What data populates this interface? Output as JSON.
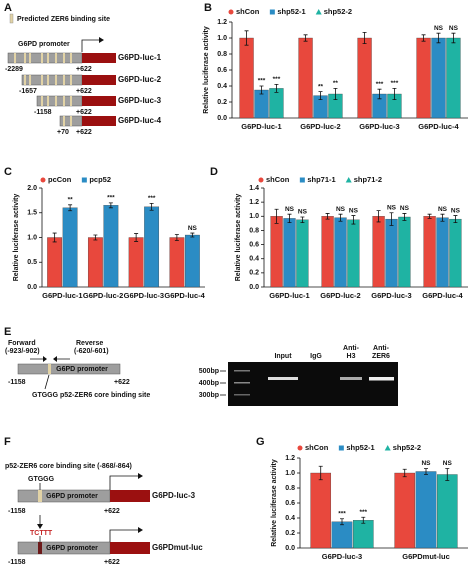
{
  "panel_labels": [
    "A",
    "B",
    "C",
    "D",
    "E",
    "F",
    "G"
  ],
  "panel_a": {
    "legend": "Predicted ZER6 binding site",
    "promoter_label": "G6PD promoter",
    "constructs": [
      {
        "name": "G6PD-luc-1",
        "start": "-2289",
        "end": "+622"
      },
      {
        "name": "G6PD-luc-2",
        "start": "-1657",
        "end": "+622"
      },
      {
        "name": "G6PD-luc-3",
        "start": "-1158",
        "end": "+622"
      },
      {
        "name": "G6PD-luc-4",
        "start": "+70",
        "end": "+622"
      }
    ]
  },
  "panel_e": {
    "forward": "Forward",
    "forward_pos": "(-923/-902)",
    "reverse": "Reverse",
    "reverse_pos": "(-620/-601)",
    "promoter_label": "G6PD promoter",
    "start": "-1158",
    "end": "+622",
    "motif": "GTGGG",
    "site_label": "p52-ZER6 core binding site",
    "gel_lanes": [
      [
        "Input"
      ],
      [
        "IgG"
      ],
      [
        "Anti-",
        "H3"
      ],
      [
        "Anti-",
        "ZER6"
      ]
    ],
    "ladder": [
      "500bp",
      "400bp",
      "300bp"
    ]
  },
  "panel_f": {
    "site_label": "p52-ZER6 core binding site (-868/-864)",
    "motif": "GTGGG",
    "mutant_motif": "TCTTT",
    "promoter_label": "G6PD promoter",
    "constructs": [
      {
        "name": "G6PD-luc-3",
        "start": "-1158",
        "end": "+622"
      },
      {
        "name": "G6PDmut-luc",
        "start": "-1158",
        "end": "+622"
      }
    ]
  },
  "chart_data": [
    {
      "type": "bar",
      "ylabel": "Relative luciferase activity",
      "legend": "top-left",
      "categories": [
        "G6PD-luc-1",
        "G6PD-luc-2",
        "G6PD-luc-3",
        "G6PD-luc-4"
      ],
      "series": [
        {
          "name": "shCon",
          "color": "#e8483d",
          "marker": "circle",
          "values": [
            1.0,
            1.0,
            1.0,
            1.0
          ],
          "errors": [
            0.09,
            0.04,
            0.07,
            0.04
          ]
        },
        {
          "name": "shp52-1",
          "color": "#2b8cc4",
          "marker": "square",
          "values": [
            0.35,
            0.28,
            0.3,
            1.0
          ],
          "errors": [
            0.05,
            0.05,
            0.06,
            0.06
          ],
          "significance": [
            "***",
            "**",
            "***",
            "NS"
          ]
        },
        {
          "name": "shp52-2",
          "color": "#1fb3a3",
          "marker": "triangle",
          "values": [
            0.37,
            0.3,
            0.3,
            1.0
          ],
          "errors": [
            0.05,
            0.07,
            0.07,
            0.06
          ],
          "significance": [
            "***",
            "**",
            "***",
            "NS"
          ]
        }
      ],
      "ylim": [
        0,
        1.2
      ],
      "yticks": [
        {
          "value": 0,
          "label": "0.0"
        },
        0.2,
        0.4,
        0.6,
        0.8,
        {
          "value": 1,
          "label": "1.0"
        },
        1.2
      ]
    },
    {
      "type": "bar",
      "ylabel": "Relative luciferase activity",
      "legend": "top-left",
      "categories": [
        "G6PD-luc-1",
        "G6PD-luc-2",
        "G6PD-luc-3",
        "G6PD-luc-4"
      ],
      "series": [
        {
          "name": "pcCon",
          "color": "#e8483d",
          "marker": "circle",
          "values": [
            1.0,
            1.0,
            1.0,
            1.0
          ],
          "errors": [
            0.09,
            0.05,
            0.08,
            0.06
          ]
        },
        {
          "name": "pcp52",
          "color": "#2b8cc4",
          "marker": "square",
          "values": [
            1.6,
            1.65,
            1.62,
            1.05
          ],
          "errors": [
            0.06,
            0.05,
            0.07,
            0.04
          ],
          "significance": [
            "**",
            "***",
            "***",
            "NS"
          ]
        }
      ],
      "ylim": [
        0,
        2
      ],
      "yticks": [
        {
          "value": 0,
          "label": "0.0"
        },
        0.5,
        {
          "value": 1,
          "label": "1.0"
        },
        1.5,
        {
          "value": 2,
          "label": "2.0"
        }
      ]
    },
    {
      "type": "bar",
      "ylabel": "Relative luciferase activity",
      "legend": "top-left",
      "categories": [
        "G6PD-luc-1",
        "G6PD-luc-2",
        "G6PD-luc-3",
        "G6PD-luc-4"
      ],
      "series": [
        {
          "name": "shCon",
          "color": "#e8483d",
          "marker": "circle",
          "values": [
            1.0,
            1.0,
            1.0,
            1.0
          ],
          "errors": [
            0.1,
            0.04,
            0.08,
            0.03
          ]
        },
        {
          "name": "shp71-1",
          "color": "#2b8cc4",
          "marker": "square",
          "values": [
            0.97,
            0.98,
            0.96,
            0.98
          ],
          "errors": [
            0.06,
            0.05,
            0.09,
            0.05
          ],
          "significance": [
            "NS",
            "NS",
            "NS",
            "NS"
          ]
        },
        {
          "name": "shp71-2",
          "color": "#1fb3a3",
          "marker": "triangle",
          "values": [
            0.95,
            0.95,
            0.99,
            0.96
          ],
          "errors": [
            0.04,
            0.06,
            0.05,
            0.05
          ],
          "significance": [
            "NS",
            "NS",
            "NS",
            "NS"
          ]
        }
      ],
      "ylim": [
        0,
        1.4
      ],
      "yticks": [
        {
          "value": 0,
          "label": "0.0"
        },
        0.2,
        0.4,
        0.6,
        0.8,
        {
          "value": 1,
          "label": "1.0"
        },
        1.2,
        1.4
      ]
    },
    {
      "type": "bar",
      "ylabel": "Relative luciferase activity",
      "legend": "top-left",
      "categories": [
        "G6PD-luc-3",
        "G6PDmut-luc"
      ],
      "series": [
        {
          "name": "shCon",
          "color": "#e8483d",
          "marker": "circle",
          "values": [
            1.0,
            1.0
          ],
          "errors": [
            0.09,
            0.05
          ]
        },
        {
          "name": "shp52-1",
          "color": "#2b8cc4",
          "marker": "square",
          "values": [
            0.35,
            1.02
          ],
          "errors": [
            0.04,
            0.04
          ],
          "significance": [
            "***",
            "NS"
          ]
        },
        {
          "name": "shp52-2",
          "color": "#1fb3a3",
          "marker": "triangle",
          "values": [
            0.37,
            0.98
          ],
          "errors": [
            0.04,
            0.08
          ],
          "significance": [
            "***",
            "NS"
          ]
        }
      ],
      "ylim": [
        0,
        1.2
      ],
      "yticks": [
        {
          "value": 0,
          "label": "0.0"
        },
        0.2,
        0.4,
        0.6,
        0.8,
        {
          "value": 1,
          "label": "1.0"
        },
        1.2
      ]
    }
  ]
}
